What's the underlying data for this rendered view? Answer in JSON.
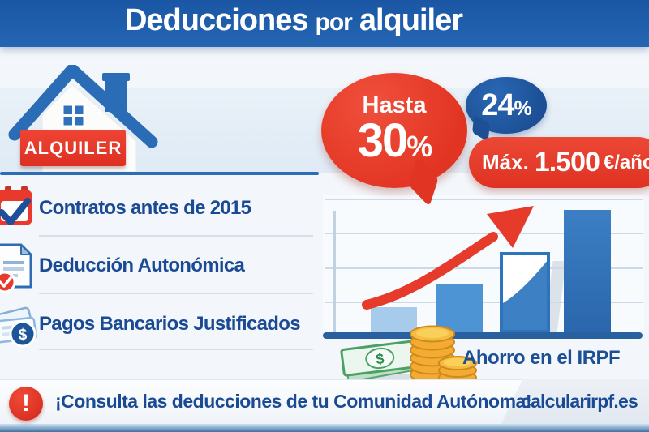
{
  "header": {
    "title_word1": "Deducciones",
    "title_word2": "por",
    "title_word3": "alquiler"
  },
  "house": {
    "sign_label": "ALQUILER"
  },
  "checklist": {
    "items": [
      {
        "label": "Contratos antes de 2015",
        "icon": "calendar-check-icon"
      },
      {
        "label": "Deducción Autonómica",
        "icon": "document-check-icon"
      },
      {
        "label": "Pagos Bancarios Justificados",
        "icon": "money-check-icon"
      }
    ]
  },
  "badges": {
    "big": {
      "prefix": "Hasta",
      "value": "30",
      "percent": "%"
    },
    "small": {
      "value": "24",
      "percent": "%"
    },
    "max": {
      "label": "Máx.",
      "amount": "1.500",
      "unit": "€/año"
    }
  },
  "chart": {
    "caption": "Ahorro en el IRPF"
  },
  "chart_data": {
    "type": "bar",
    "title": "Ahorro en el IRPF",
    "categories": [
      "",
      "",
      "",
      ""
    ],
    "values": [
      21,
      40,
      66,
      100
    ],
    "value_unit": "percent_of_max_bar_height",
    "xlabel": "",
    "ylabel": "",
    "grid": true,
    "legend": false,
    "bar_styles": [
      "light-fill",
      "medium-fill",
      "outlined-partial-fill",
      "solid-fill"
    ],
    "annotations": [
      "red rising trend arrow",
      "gold coins and green banknote at axis base"
    ]
  },
  "footer": {
    "warning_mark": "!",
    "warning_text": "¡Consulta las deducciones de tu Comunidad Autónoma!",
    "site_prefix": "calcular",
    "site_suffix": "irpf.es"
  },
  "glyphs": {
    "dollar": "$"
  },
  "colors": {
    "brand_blue": "#1e5ca8",
    "accent_red": "#e63a2b",
    "bubble_blue": "#1c549b",
    "text_blue": "#1a4a93",
    "bar_light": "#a7cbea",
    "bar_medium": "#4c94d4",
    "bar_dark": "#2d6db2",
    "axis_blue": "#29609f",
    "coin_gold": "#f3ab33",
    "note_green": "#4aa163"
  }
}
